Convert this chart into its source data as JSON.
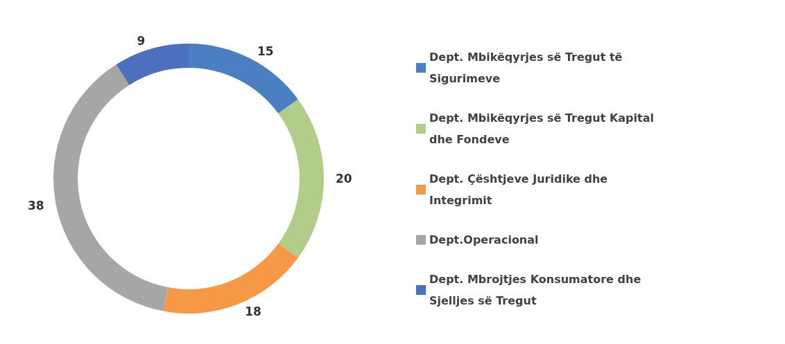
{
  "chart_data": {
    "type": "donut",
    "categories": [
      "Dept. Mbikëqyrjes së Tregut të Sigurimeve",
      "Dept. Mbikëqyrjes së Tregut Kapital dhe Fondeve",
      "Dept. Çështjeve Juridike dhe Integrimit",
      "Dept.Operacional",
      "Dept. Mbrojtjes Konsumatore dhe Sjelljes së Tregut"
    ],
    "values": [
      15,
      20,
      18,
      38,
      9
    ],
    "colors": [
      "#4a80c2",
      "#b2cd8a",
      "#f79847",
      "#a6a6a6",
      "#4a70be"
    ],
    "data_labels": true,
    "legend": "right"
  }
}
